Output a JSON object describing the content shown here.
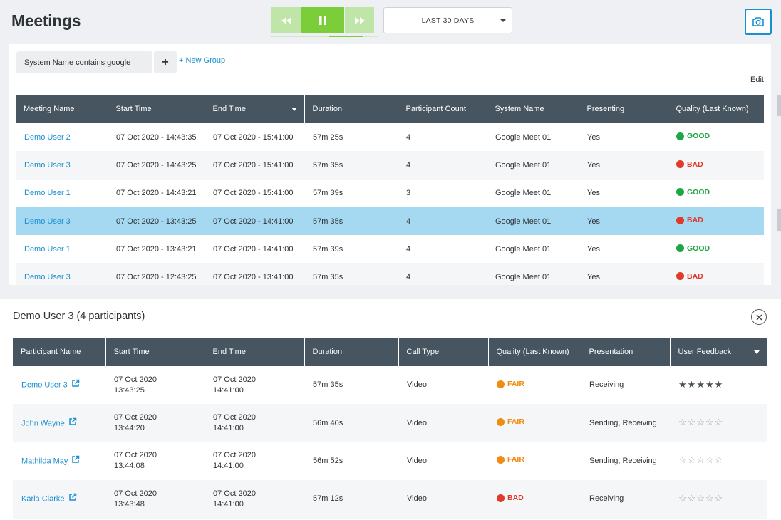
{
  "header": {
    "title": "Meetings",
    "time_range": "LAST 30 DAYS",
    "transport": [
      "rewind-icon",
      "pause-icon",
      "fast-forward-icon"
    ],
    "camera_icon": "camera-icon"
  },
  "filters": {
    "chip_label": "System Name contains google",
    "add_label": "+",
    "new_group_label": "+ New Group",
    "edit_label": "Edit"
  },
  "meetings": {
    "columns": [
      "Meeting Name",
      "Start Time",
      "End Time",
      "Duration",
      "Participant Count",
      "System Name",
      "Presenting",
      "Quality (Last Known)"
    ],
    "sorted_column": "End Time",
    "rows": [
      {
        "name": "Demo User 2",
        "start": "07 Oct 2020 - 14:43:35",
        "end": "07 Oct 2020 - 15:41:00",
        "duration": "57m 25s",
        "count": "4",
        "system": "Google Meet 01",
        "presenting": "Yes",
        "quality": "GOOD",
        "quality_level": "good"
      },
      {
        "name": "Demo User 3",
        "start": "07 Oct 2020 - 14:43:25",
        "end": "07 Oct 2020 - 15:41:00",
        "duration": "57m 35s",
        "count": "4",
        "system": "Google Meet 01",
        "presenting": "Yes",
        "quality": "BAD",
        "quality_level": "bad"
      },
      {
        "name": "Demo User 1",
        "start": "07 Oct 2020 - 14:43:21",
        "end": "07 Oct 2020 - 15:41:00",
        "duration": "57m 39s",
        "count": "3",
        "system": "Google Meet 01",
        "presenting": "Yes",
        "quality": "GOOD",
        "quality_level": "good"
      },
      {
        "name": "Demo User 3",
        "start": "07 Oct 2020 - 13:43:25",
        "end": "07 Oct 2020 - 14:41:00",
        "duration": "57m 35s",
        "count": "4",
        "system": "Google Meet 01",
        "presenting": "Yes",
        "quality": "BAD",
        "quality_level": "bad",
        "selected": true
      },
      {
        "name": "Demo User 1",
        "start": "07 Oct 2020 - 13:43:21",
        "end": "07 Oct 2020 - 14:41:00",
        "duration": "57m 39s",
        "count": "4",
        "system": "Google Meet 01",
        "presenting": "Yes",
        "quality": "GOOD",
        "quality_level": "good"
      },
      {
        "name": "Demo User 3",
        "start": "07 Oct 2020 - 12:43:25",
        "end": "07 Oct 2020 - 13:41:00",
        "duration": "57m 35s",
        "count": "4",
        "system": "Google Meet 01",
        "presenting": "Yes",
        "quality": "BAD",
        "quality_level": "bad"
      }
    ]
  },
  "participants": {
    "title": "Demo User 3 (4 participants)",
    "close_icon": "close-circle-icon",
    "columns": [
      "Participant Name",
      "Start Time",
      "End Time",
      "Duration",
      "Call Type",
      "Quality (Last Known)",
      "Presentation",
      "User Feedback"
    ],
    "sorted_column": "User Feedback",
    "rows": [
      {
        "name": "Demo User 3",
        "start_date": "07 Oct 2020",
        "start_time": "13:43:25",
        "end_date": "07 Oct 2020",
        "end_time": "14:41:00",
        "duration": "57m 35s",
        "call_type": "Video",
        "quality": "FAIR",
        "quality_level": "fair",
        "presentation": "Receiving",
        "rating": 5
      },
      {
        "name": "John Wayne",
        "start_date": "07 Oct 2020",
        "start_time": "13:44:20",
        "end_date": "07 Oct 2020",
        "end_time": "14:41:00",
        "duration": "56m 40s",
        "call_type": "Video",
        "quality": "FAIR",
        "quality_level": "fair",
        "presentation": "Sending, Receiving",
        "rating": 0
      },
      {
        "name": "Mathilda May",
        "start_date": "07 Oct 2020",
        "start_time": "13:44:08",
        "end_date": "07 Oct 2020",
        "end_time": "14:41:00",
        "duration": "56m 52s",
        "call_type": "Video",
        "quality": "FAIR",
        "quality_level": "fair",
        "presentation": "Sending, Receiving",
        "rating": 0
      },
      {
        "name": "Karla Clarke",
        "start_date": "07 Oct 2020",
        "start_time": "13:43:48",
        "end_date": "07 Oct 2020",
        "end_time": "14:41:00",
        "duration": "57m 12s",
        "call_type": "Video",
        "quality": "BAD",
        "quality_level": "bad",
        "presentation": "Receiving",
        "rating": 0
      }
    ]
  },
  "colors": {
    "accent": "#1a8fd0",
    "play_green": "#7ccd3a",
    "header_bg": "#46555f",
    "selected_row": "#a5d9f2",
    "good": "#1ea644",
    "bad": "#e03a2a",
    "fair": "#ef8c12"
  }
}
